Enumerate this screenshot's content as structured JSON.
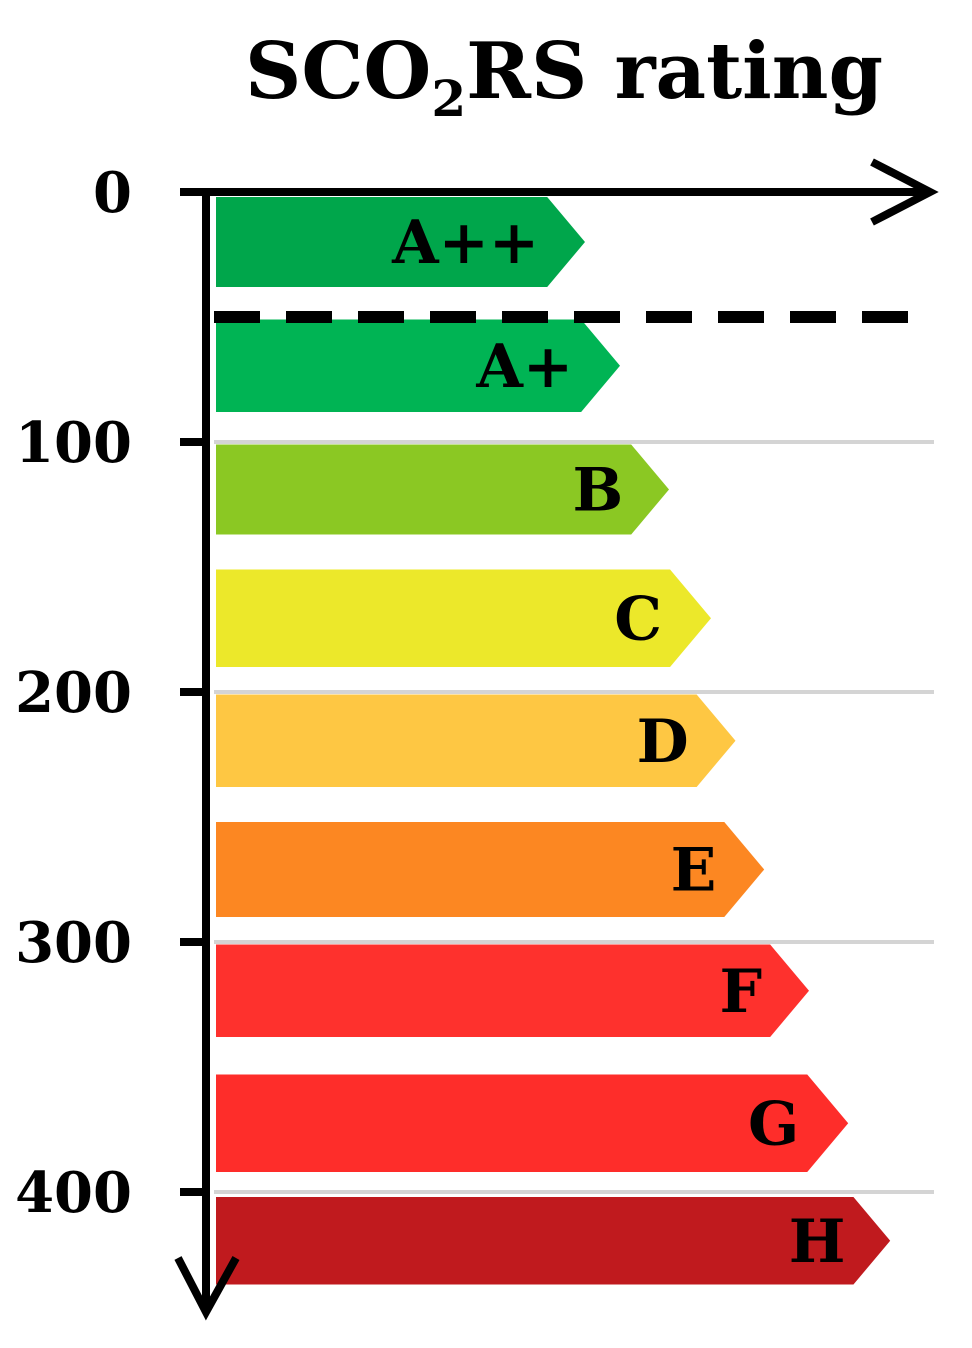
{
  "chart_data": {
    "type": "bar",
    "title": {
      "main": "SCO",
      "subscript": "2",
      "suffix": "RS rating"
    },
    "y_axis": {
      "ticks": [
        0,
        100,
        200,
        300,
        400
      ],
      "inverted": true,
      "gridlines_at": [
        100,
        200,
        300,
        400
      ]
    },
    "threshold_line": {
      "value": 50,
      "style": "dashed"
    },
    "bars": [
      {
        "label": "A++",
        "from": 2,
        "to": 38,
        "color": "#00a64b",
        "length": 0.53
      },
      {
        "label": "A+",
        "from": 51,
        "to": 88,
        "color": "#00b454",
        "length": 0.58
      },
      {
        "label": "B",
        "from": 101,
        "to": 137,
        "color": "#8bc823",
        "length": 0.65
      },
      {
        "label": "C",
        "from": 151,
        "to": 190,
        "color": "#ece82a",
        "length": 0.71
      },
      {
        "label": "D",
        "from": 201,
        "to": 238,
        "color": "#fec743",
        "length": 0.745
      },
      {
        "label": "E",
        "from": 252,
        "to": 290,
        "color": "#fc8722",
        "length": 0.786
      },
      {
        "label": "F",
        "from": 301,
        "to": 338,
        "color": "#fe312d",
        "length": 0.85
      },
      {
        "label": "G",
        "from": 353,
        "to": 392,
        "color": "#fe2d2a",
        "length": 0.906
      },
      {
        "label": "H",
        "from": 402,
        "to": 437,
        "color": "#c01a1e",
        "length": 0.966
      }
    ]
  }
}
